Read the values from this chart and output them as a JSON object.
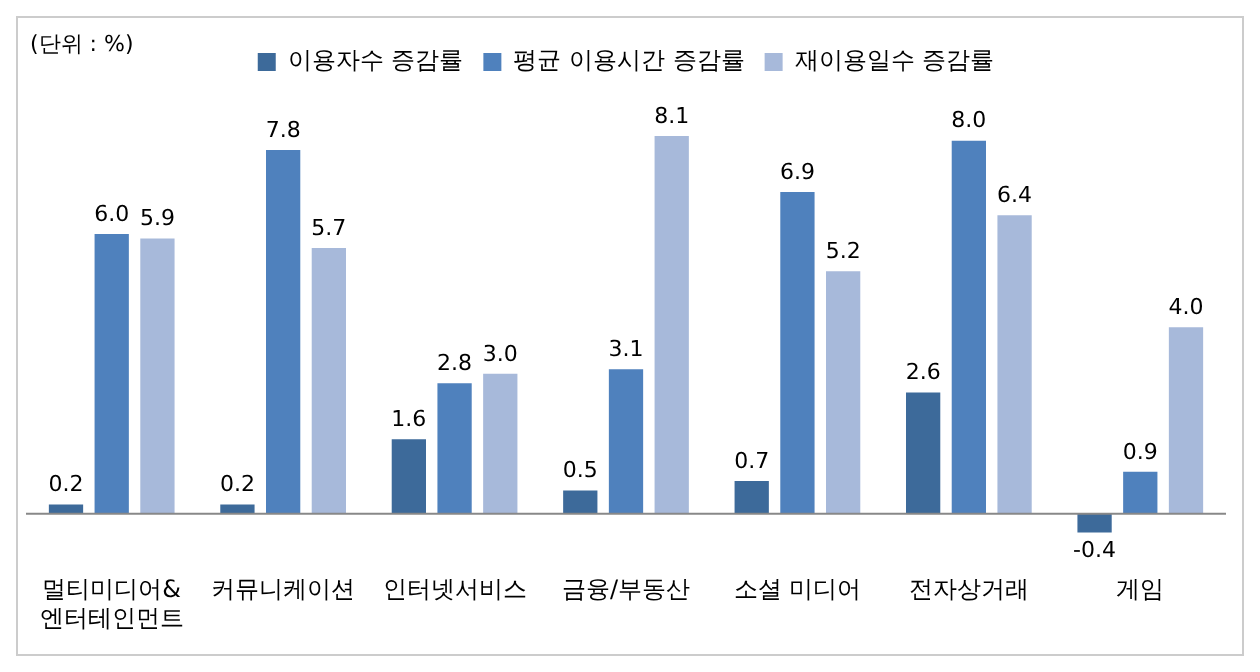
{
  "chart_data": {
    "type": "bar",
    "annotations": [
      "(단위 : %)"
    ],
    "categories": [
      "멀티미디어&\n엔터테인먼트",
      "커뮤니케이션",
      "인터넷서비스",
      "금융/부동산",
      "소셜 미디어",
      "전자상거래",
      "게임"
    ],
    "series": [
      {
        "name": "이용자수 증감률",
        "color": "#3d6a9a",
        "values": [
          0.2,
          0.2,
          1.6,
          0.5,
          0.7,
          2.6,
          -0.4
        ],
        "value_labels": [
          "0.2",
          "0.2",
          "1.6",
          "0.5",
          "0.7",
          "2.6",
          "-0.4"
        ]
      },
      {
        "name": "평균 이용시간 증감률",
        "color": "#4f81bd",
        "values": [
          6,
          7.8,
          2.8,
          3.1,
          6.9,
          8,
          0.9
        ],
        "value_labels": [
          "6.0",
          "7.8",
          "2.8",
          "3.1",
          "6.9",
          "8.0",
          "0.9"
        ]
      },
      {
        "name": "재이용일수 증감률",
        "color": "#a7b9da",
        "values": [
          5.9,
          5.7,
          3,
          8.1,
          5.2,
          6.4,
          4
        ],
        "value_labels": [
          "5.9",
          "5.7",
          "3.0",
          "8.1",
          "5.2",
          "6.4",
          "4.0"
        ]
      }
    ],
    "legend": "top",
    "grid": false
  }
}
